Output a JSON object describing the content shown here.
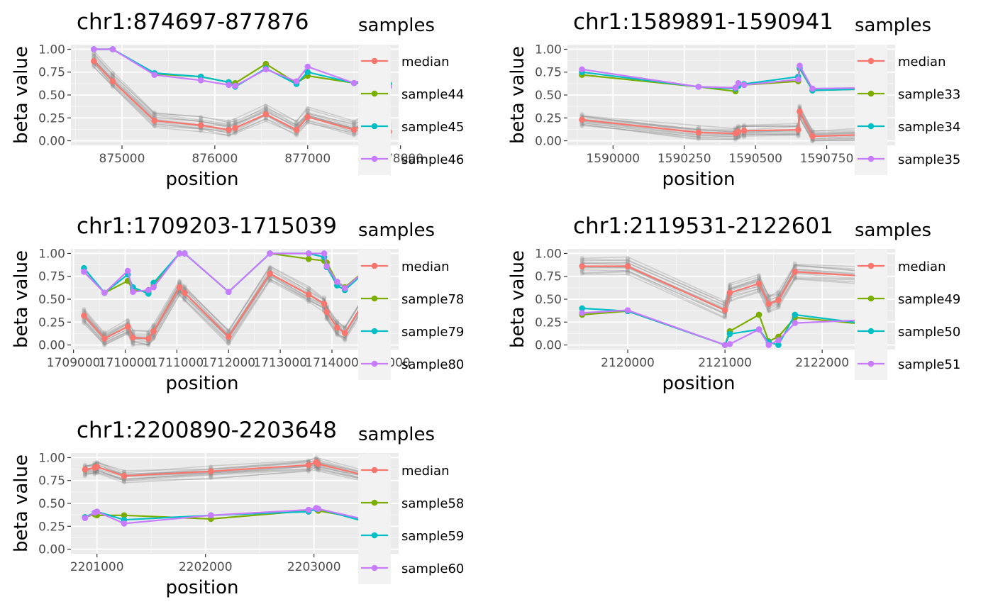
{
  "chart_data": [
    {
      "type": "line",
      "title": "chr1:874697-877876",
      "xlabel": "position",
      "ylabel": "beta value",
      "xlim": [
        874450,
        877980
      ],
      "ylim": [
        -0.05,
        1.05
      ],
      "xticks": [
        875000,
        876000,
        877000,
        878000
      ],
      "xtick_labels": [
        "875000",
        "876000",
        "877000",
        "878000"
      ],
      "yticks": [
        0,
        0.25,
        0.5,
        0.75,
        1
      ],
      "ytick_labels": [
        "0.00",
        "0.25",
        "0.50",
        "0.75",
        "1.00"
      ],
      "grid": true,
      "legend_title": "samples",
      "legend_position": "right",
      "x": [
        874697,
        874900,
        875350,
        875850,
        876150,
        876220,
        876550,
        876880,
        877000,
        877500,
        877650,
        877660,
        877876
      ],
      "series": [
        {
          "name": "median",
          "color": "#F8766D",
          "values": [
            0.87,
            0.65,
            0.22,
            0.17,
            0.12,
            0.14,
            0.29,
            0.12,
            0.26,
            0.12,
            0.2,
            0.14,
            0.1
          ]
        },
        {
          "name": "sample44",
          "color": "#7CAE00",
          "values": [
            1.0,
            1.0,
            0.73,
            0.7,
            0.64,
            0.63,
            0.84,
            0.63,
            0.71,
            0.63,
            0.63,
            0.66,
            0.62
          ]
        },
        {
          "name": "sample45",
          "color": "#00BFC4",
          "values": [
            1.0,
            1.0,
            0.74,
            0.7,
            0.64,
            0.59,
            0.79,
            0.62,
            0.75,
            0.63,
            0.65,
            0.66,
            0.62
          ]
        },
        {
          "name": "sample46",
          "color": "#C77CFF",
          "values": [
            1.0,
            1.0,
            0.72,
            0.66,
            0.61,
            0.6,
            0.78,
            0.65,
            0.81,
            0.63,
            0.69,
            0.69,
            0.59
          ]
        }
      ],
      "background_band": {
        "offsets": [
          -0.06,
          0.09
        ]
      }
    },
    {
      "type": "line",
      "title": "chr1:1589891-1590941",
      "xlabel": "position",
      "ylabel": "beta value",
      "xlim": [
        1589840,
        1590990
      ],
      "ylim": [
        -0.05,
        1.05
      ],
      "xticks": [
        1590000,
        1590250,
        1590500,
        1590750
      ],
      "xtick_labels": [
        "1590000",
        "1590250",
        "1590500",
        "1590750"
      ],
      "yticks": [
        0,
        0.25,
        0.5,
        0.75,
        1
      ],
      "ytick_labels": [
        "0.00",
        "0.25",
        "0.50",
        "0.75",
        "1.00"
      ],
      "grid": true,
      "legend_title": "samples",
      "legend_position": "right",
      "x": [
        1589891,
        1590300,
        1590430,
        1590440,
        1590460,
        1590650,
        1590655,
        1590700,
        1590941
      ],
      "series": [
        {
          "name": "median",
          "color": "#F8766D",
          "values": [
            0.23,
            0.09,
            0.08,
            0.1,
            0.11,
            0.12,
            0.32,
            0.05,
            0.07
          ]
        },
        {
          "name": "sample33",
          "color": "#7CAE00",
          "values": [
            0.72,
            0.59,
            0.54,
            0.6,
            0.61,
            0.65,
            0.79,
            0.55,
            0.57
          ]
        },
        {
          "name": "sample34",
          "color": "#00BFC4",
          "values": [
            0.75,
            0.59,
            0.57,
            0.6,
            0.62,
            0.7,
            0.8,
            0.55,
            0.57
          ]
        },
        {
          "name": "sample35",
          "color": "#C77CFF",
          "values": [
            0.78,
            0.59,
            0.58,
            0.63,
            0.61,
            0.67,
            0.82,
            0.57,
            0.58
          ]
        }
      ],
      "background_band": {
        "offsets": [
          -0.07,
          0.06
        ]
      }
    },
    {
      "type": "line",
      "title": "chr1:1709203-1715039",
      "xlabel": "position",
      "ylabel": "beta value",
      "xlim": [
        1708950,
        1715290
      ],
      "ylim": [
        -0.05,
        1.05
      ],
      "xticks": [
        1709000,
        1710000,
        1711000,
        1712000,
        1713000,
        1714000,
        1715000
      ],
      "xtick_labels": [
        "1709000",
        "1710000",
        "1711000",
        "1712000",
        "1713000",
        "1714000",
        "1715000"
      ],
      "yticks": [
        0,
        0.25,
        0.5,
        0.75,
        1
      ],
      "ytick_labels": [
        "0.00",
        "0.25",
        "0.50",
        "0.75",
        "1.00"
      ],
      "grid": true,
      "legend_title": "samples",
      "legend_position": "right",
      "x": [
        1709203,
        1709600,
        1710050,
        1710150,
        1710450,
        1710550,
        1711050,
        1711150,
        1712000,
        1712800,
        1713550,
        1713850,
        1713900,
        1714100,
        1714250,
        1715039
      ],
      "series": [
        {
          "name": "median",
          "color": "#F8766D",
          "values": [
            0.32,
            0.07,
            0.2,
            0.08,
            0.07,
            0.15,
            0.63,
            0.57,
            0.09,
            0.78,
            0.55,
            0.45,
            0.36,
            0.19,
            0.13,
            0.85
          ]
        },
        {
          "name": "sample78",
          "color": "#7CAE00",
          "values": [
            0.8,
            0.57,
            0.7,
            0.6,
            0.58,
            0.65,
            1.0,
            1.0,
            0.58,
            1.0,
            0.94,
            0.92,
            0.9,
            0.69,
            0.63,
            1.0
          ]
        },
        {
          "name": "sample79",
          "color": "#00BFC4",
          "values": [
            0.84,
            0.57,
            0.77,
            0.63,
            0.56,
            0.68,
            1.0,
            1.0,
            0.58,
            1.0,
            1.0,
            0.96,
            0.85,
            0.65,
            0.6,
            1.0
          ]
        },
        {
          "name": "sample80",
          "color": "#C77CFF",
          "values": [
            0.8,
            0.57,
            0.81,
            0.58,
            0.6,
            0.63,
            1.0,
            1.0,
            0.58,
            1.0,
            1.0,
            1.0,
            0.86,
            0.69,
            0.62,
            1.0
          ]
        }
      ],
      "background_band": {
        "offsets": [
          -0.08,
          0.07
        ]
      }
    },
    {
      "type": "line",
      "title": "chr1:2119531-2122601",
      "xlabel": "position",
      "ylabel": "beta value",
      "xlim": [
        2119380,
        2122750
      ],
      "ylim": [
        -0.05,
        1.05
      ],
      "xticks": [
        2120000,
        2121000,
        2122000
      ],
      "xtick_labels": [
        "2120000",
        "2121000",
        "2122000"
      ],
      "yticks": [
        0,
        0.25,
        0.5,
        0.75,
        1
      ],
      "ytick_labels": [
        "0.00",
        "0.25",
        "0.50",
        "0.75",
        "1.00"
      ],
      "grid": true,
      "legend_title": "samples",
      "legend_position": "right",
      "x": [
        2119531,
        2120000,
        2121000,
        2121050,
        2121350,
        2121450,
        2121550,
        2121720,
        2122601
      ],
      "series": [
        {
          "name": "median",
          "color": "#F8766D",
          "values": [
            0.86,
            0.86,
            0.38,
            0.57,
            0.67,
            0.45,
            0.49,
            0.8,
            0.74
          ]
        },
        {
          "name": "sample49",
          "color": "#7CAE00",
          "values": [
            0.33,
            0.37,
            0.0,
            0.15,
            0.33,
            0.04,
            0.09,
            0.3,
            0.21
          ]
        },
        {
          "name": "sample50",
          "color": "#00BFC4",
          "values": [
            0.4,
            0.37,
            0.0,
            0.12,
            0.17,
            0.03,
            0.0,
            0.33,
            0.21
          ]
        },
        {
          "name": "sample51",
          "color": "#C77CFF",
          "values": [
            0.35,
            0.38,
            0.0,
            0.01,
            0.17,
            0.0,
            0.05,
            0.24,
            0.28
          ]
        }
      ],
      "background_band": {
        "offsets": [
          -0.08,
          0.09
        ]
      }
    },
    {
      "type": "line",
      "title": "chr1:2200890-2203648",
      "xlabel": "position",
      "ylabel": "beta value",
      "xlim": [
        2200760,
        2203780
      ],
      "ylim": [
        -0.05,
        1.05
      ],
      "xticks": [
        2201000,
        2202000,
        2203000
      ],
      "xtick_labels": [
        "2201000",
        "2202000",
        "2203000"
      ],
      "yticks": [
        0,
        0.25,
        0.5,
        0.75,
        1
      ],
      "ytick_labels": [
        "0.00",
        "0.25",
        "0.50",
        "0.75",
        "1.00"
      ],
      "grid": true,
      "legend_title": "samples",
      "legend_position": "right",
      "x": [
        2200890,
        2200980,
        2201000,
        2201250,
        2202050,
        2202950,
        2203020,
        2203040,
        2203600,
        2203648
      ],
      "series": [
        {
          "name": "median",
          "color": "#F8766D",
          "values": [
            0.87,
            0.89,
            0.9,
            0.8,
            0.85,
            0.92,
            0.95,
            0.93,
            0.77,
            0.9
          ]
        },
        {
          "name": "sample58",
          "color": "#7CAE00",
          "values": [
            0.35,
            0.38,
            0.37,
            0.37,
            0.33,
            0.42,
            0.44,
            0.42,
            0.3,
            0.37
          ]
        },
        {
          "name": "sample59",
          "color": "#00BFC4",
          "values": [
            0.35,
            0.4,
            0.41,
            0.32,
            0.37,
            0.41,
            0.44,
            0.44,
            0.26,
            0.39
          ]
        },
        {
          "name": "sample60",
          "color": "#C77CFF",
          "values": [
            0.34,
            0.4,
            0.41,
            0.28,
            0.37,
            0.43,
            0.45,
            0.44,
            0.29,
            0.36
          ]
        }
      ],
      "background_band": {
        "offsets": [
          -0.07,
          0.05
        ]
      }
    }
  ]
}
